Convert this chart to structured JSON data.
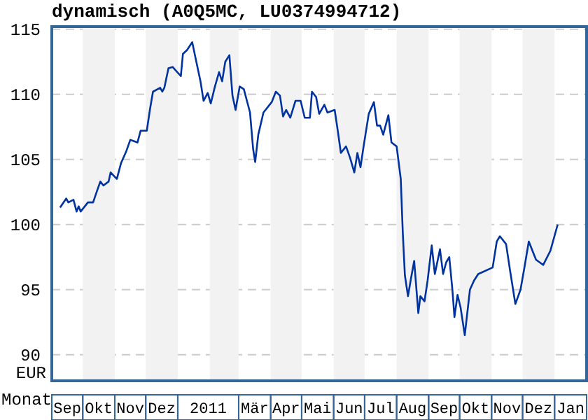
{
  "chart_data": {
    "type": "line",
    "title": "dynamisch (A0Q5MC, LU0374994712)",
    "xlabel": "Monat",
    "ylabel": "EUR",
    "series": [
      {
        "color": "#0033a0",
        "x": [
          "2010-09-09",
          "2010-09-15",
          "2010-09-17",
          "2010-09-22",
          "2010-09-25",
          "2010-09-27",
          "2010-09-29",
          "2010-10-06",
          "2010-10-11",
          "2010-10-14",
          "2010-10-18",
          "2010-10-21",
          "2010-10-26",
          "2010-10-28",
          "2010-11-03",
          "2010-11-07",
          "2010-11-12",
          "2010-11-16",
          "2010-11-23",
          "2010-11-26",
          "2010-12-02",
          "2010-12-05",
          "2010-12-08",
          "2010-12-15",
          "2010-12-17",
          "2010-12-19",
          "2010-12-23",
          "2010-12-27",
          "2011-01-04",
          "2011-01-06",
          "2011-01-10",
          "2011-01-15",
          "2011-01-19",
          "2011-01-23",
          "2011-01-26",
          "2011-01-30",
          "2011-02-02",
          "2011-02-06",
          "2011-02-10",
          "2011-02-13",
          "2011-02-16",
          "2011-02-20",
          "2011-02-23",
          "2011-02-26",
          "2011-03-02",
          "2011-03-06",
          "2011-03-12",
          "2011-03-15",
          "2011-03-17",
          "2011-03-20",
          "2011-03-25",
          "2011-04-02",
          "2011-04-06",
          "2011-04-10",
          "2011-04-13",
          "2011-04-16",
          "2011-04-20",
          "2011-04-25",
          "2011-04-30",
          "2011-05-04",
          "2011-05-09",
          "2011-05-11",
          "2011-05-15",
          "2011-05-18",
          "2011-05-23",
          "2011-05-26",
          "2011-06-02",
          "2011-06-05",
          "2011-06-08",
          "2011-06-13",
          "2011-06-17",
          "2011-06-21",
          "2011-06-24",
          "2011-06-27",
          "2011-06-30",
          "2011-07-05",
          "2011-07-10",
          "2011-07-13",
          "2011-07-16",
          "2011-07-19",
          "2011-07-24",
          "2011-07-27",
          "2011-08-01",
          "2011-08-05",
          "2011-08-07",
          "2011-08-09",
          "2011-08-12",
          "2011-08-15",
          "2011-08-18",
          "2011-08-22",
          "2011-08-24",
          "2011-08-28",
          "2011-08-31",
          "2011-09-04",
          "2011-09-07",
          "2011-09-12",
          "2011-09-15",
          "2011-09-18",
          "2011-09-21",
          "2011-09-24",
          "2011-09-26",
          "2011-09-29",
          "2011-10-02",
          "2011-10-06",
          "2011-10-11",
          "2011-10-15",
          "2011-10-19",
          "2011-11-02",
          "2011-11-06",
          "2011-11-09",
          "2011-11-15",
          "2011-11-19",
          "2011-11-24",
          "2011-11-29",
          "2011-12-03",
          "2011-12-07",
          "2011-12-14",
          "2011-12-21",
          "2011-12-28",
          "2012-01-04"
        ],
        "values": [
          101.3,
          102.0,
          101.7,
          101.9,
          101.0,
          101.4,
          101.0,
          101.7,
          101.7,
          102.4,
          103.3,
          103.0,
          103.3,
          104.0,
          103.5,
          104.7,
          105.6,
          106.5,
          106.3,
          107.2,
          107.2,
          108.8,
          110.2,
          110.5,
          110.2,
          110.5,
          112.0,
          112.1,
          111.4,
          113.1,
          113.4,
          114.0,
          112.5,
          111.0,
          109.5,
          110.1,
          109.3,
          110.6,
          111.7,
          111.0,
          112.5,
          113.0,
          109.9,
          108.8,
          110.6,
          110.4,
          108.6,
          105.8,
          104.8,
          106.9,
          108.6,
          109.4,
          110.2,
          109.9,
          108.3,
          108.8,
          108.2,
          109.5,
          109.5,
          108.2,
          108.2,
          110.2,
          109.8,
          108.5,
          109.2,
          108.6,
          108.8,
          107.2,
          105.5,
          106.0,
          105.1,
          104.0,
          105.5,
          104.4,
          106.0,
          108.5,
          109.4,
          107.6,
          107.6,
          106.9,
          108.4,
          106.3,
          106.0,
          103.5,
          99.3,
          96.1,
          94.5,
          95.9,
          97.2,
          93.2,
          94.5,
          94.1,
          95.7,
          98.4,
          96.2,
          98.1,
          96.2,
          97.1,
          97.5,
          95.0,
          92.9,
          94.6,
          93.6,
          91.5,
          95.0,
          95.7,
          96.2,
          96.7,
          98.7,
          99.1,
          98.5,
          96.4,
          93.9,
          95.0,
          96.8,
          98.7,
          97.3,
          96.9,
          98.0,
          100.0
        ]
      }
    ],
    "xlim": [
      "2010-09-01",
      "2012-02-01"
    ],
    "xticks": [
      {
        "value": "2010-09-16",
        "label": "Sep"
      },
      {
        "value": "2010-10-16T12:00",
        "label": "Okt"
      },
      {
        "value": "2010-11-16",
        "label": "Nov"
      },
      {
        "value": "2010-12-16T12:00",
        "label": "Dez"
      },
      {
        "value": "2011-01-30T12:00",
        "label": "2011"
      },
      {
        "value": "2011-03-16T12:00",
        "label": "Mär"
      },
      {
        "value": "2011-04-16",
        "label": "Apr"
      },
      {
        "value": "2011-05-16T12:00",
        "label": "Mai"
      },
      {
        "value": "2011-06-16",
        "label": "Jun"
      },
      {
        "value": "2011-07-16T12:00",
        "label": "Jul"
      },
      {
        "value": "2011-08-16T12:00",
        "label": "Aug"
      },
      {
        "value": "2011-09-16",
        "label": "Sep"
      },
      {
        "value": "2011-10-16T12:00",
        "label": "Okt"
      },
      {
        "value": "2011-11-16",
        "label": "Nov"
      },
      {
        "value": "2011-12-16T12:00",
        "label": "Dez"
      },
      {
        "value": "2012-01-16T12:00",
        "label": "Jan"
      }
    ],
    "ylim": [
      88,
      115.2
    ],
    "yticks": [
      90,
      95,
      100,
      105,
      110,
      115
    ],
    "bands": [
      {
        "axis": "x",
        "from": "2010-10-01",
        "to": "2010-11-01",
        "color": "#f2f2f2"
      },
      {
        "axis": "x",
        "from": "2010-12-01",
        "to": "2011-01-01",
        "color": "#f2f2f2"
      },
      {
        "axis": "x",
        "from": "2011-02-01",
        "to": "2011-03-01",
        "color": "#f2f2f2"
      },
      {
        "axis": "x",
        "from": "2011-04-01",
        "to": "2011-05-01",
        "color": "#f2f2f2"
      },
      {
        "axis": "x",
        "from": "2011-06-01",
        "to": "2011-07-01",
        "color": "#f2f2f2"
      },
      {
        "axis": "x",
        "from": "2011-08-01",
        "to": "2011-09-01",
        "color": "#f2f2f2"
      },
      {
        "axis": "x",
        "from": "2011-10-01",
        "to": "2011-11-01",
        "color": "#f2f2f2"
      },
      {
        "axis": "x",
        "from": "2011-12-01",
        "to": "2012-01-01",
        "color": "#f2f2f2"
      }
    ],
    "grid": "y",
    "marker": "none",
    "line_style": "solid"
  }
}
